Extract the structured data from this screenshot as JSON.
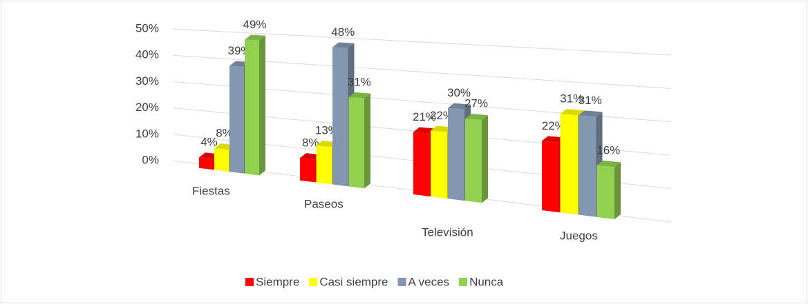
{
  "chart_data": {
    "type": "bar3d",
    "categories": [
      "Fiestas",
      "Paseos",
      "Televisión",
      "Juegos"
    ],
    "series": [
      {
        "name": "Siempre",
        "color": "#ff0000",
        "values": [
          4,
          8,
          21,
          22
        ],
        "value_labels": [
          "4%",
          "8%",
          "21%",
          "22%"
        ]
      },
      {
        "name": "Casi siempre",
        "color": "#ffff00",
        "values": [
          8,
          13,
          22,
          31
        ],
        "value_labels": [
          "8%",
          "13%",
          "22%",
          "31%"
        ]
      },
      {
        "name": "A veces",
        "color": "#8497b0",
        "values": [
          39,
          48,
          30,
          31
        ],
        "value_labels": [
          "39%",
          "48%",
          "30%",
          "31%"
        ]
      },
      {
        "name": "Nunca",
        "color": "#92d050",
        "values": [
          49,
          31,
          27,
          16
        ],
        "value_labels": [
          "49%",
          "31%",
          "27%",
          "16%"
        ]
      }
    ],
    "ylim": [
      0,
      50
    ],
    "yticks": [
      {
        "value": 0,
        "label": "0%"
      },
      {
        "value": 10,
        "label": "10%"
      },
      {
        "value": 20,
        "label": "20%"
      },
      {
        "value": 30,
        "label": "30%"
      },
      {
        "value": 40,
        "label": "40%"
      },
      {
        "value": 50,
        "label": "50%"
      }
    ],
    "grid": true,
    "legend": "bottom"
  }
}
